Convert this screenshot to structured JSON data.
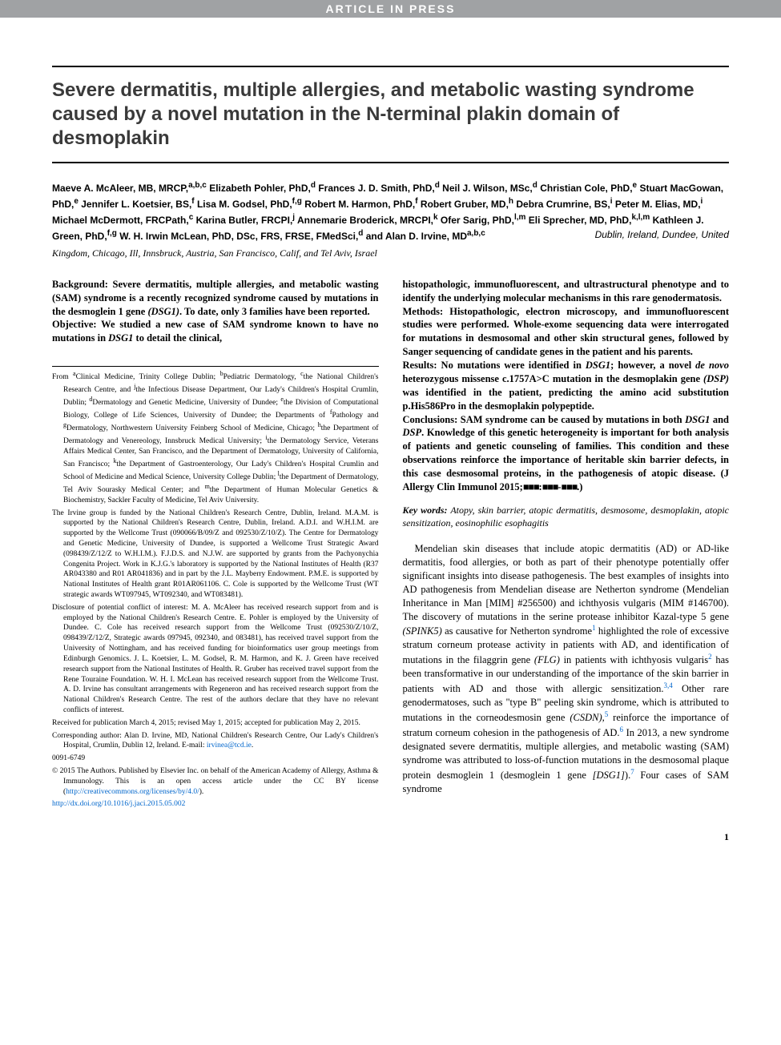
{
  "header": {
    "article_in_press": "ARTICLE IN PRESS"
  },
  "title": "Severe dermatitis, multiple allergies, and metabolic wasting syndrome caused by a novel mutation in the N-terminal plakin domain of desmoplakin",
  "authors_html": "Maeve A. McAleer, MB, MRCP,<sup>a,b,c</sup> Elizabeth Pohler, PhD,<sup>d</sup> Frances J. D. Smith, PhD,<sup>d</sup> Neil J. Wilson, MSc,<sup>d</sup> Christian Cole, PhD,<sup>e</sup> Stuart MacGowan, PhD,<sup>e</sup> Jennifer L. Koetsier, BS,<sup>f</sup> Lisa M. Godsel, PhD,<sup>f,g</sup> Robert M. Harmon, PhD,<sup>f</sup> Robert Gruber, MD,<sup>h</sup> Debra Crumrine, BS,<sup>i</sup> Peter M. Elias, MD,<sup>i</sup> Michael McDermott, FRCPath,<sup>c</sup> Karina Butler, FRCPI,<sup>j</sup> Annemarie Broderick, MRCPI,<sup>k</sup> Ofer Sarig, PhD,<sup>l,m</sup> Eli Sprecher, MD, PhD,<sup>k,l,m</sup> Kathleen J. Green, PhD,<sup>f,g</sup> W. H. Irwin McLean, PhD, DSc, FRS, FRSE, FMedSci,<sup>d</sup> and Alan D. Irvine, MD<sup>a,b,c</sup>",
  "locations_inline": "Dublin, Ireland, Dundee, United",
  "locations_rest": "Kingdom, Chicago, Ill, Innsbruck, Austria, San Francisco, Calif, and Tel Aviv, Israel",
  "abstract": {
    "background": "Background: Severe dermatitis, multiple allergies, and metabolic wasting (SAM) syndrome is a recently recognized syndrome caused by mutations in the desmoglein 1 gene <i>(DSG1)</i>. To date, only 3 families have been reported.",
    "objective": "Objective: We studied a new case of SAM syndrome known to have no mutations in <i>DSG1</i> to detail the clinical,",
    "objective_cont": "histopathologic, immunofluorescent, and ultrastructural phenotype and to identify the underlying molecular mechanisms in this rare genodermatosis.",
    "methods": "Methods: Histopathologic, electron microscopy, and immunofluorescent studies were performed. Whole-exome sequencing data were interrogated for mutations in desmosomal and other skin structural genes, followed by Sanger sequencing of candidate genes in the patient and his parents.",
    "results": "Results: No mutations were identified in <i>DSG1</i>; however, a novel <i>de novo</i> heterozygous missense c.1757A>C mutation in the desmoplakin gene <i>(DSP)</i> was identified in the patient, predicting the amino acid substitution p.His586Pro in the desmoplakin polypeptide.",
    "conclusions": "Conclusions: SAM syndrome can be caused by mutations in both <i>DSG1</i> and <i>DSP</i>. Knowledge of this genetic heterogeneity is important for both analysis of patients and genetic counseling of families. This condition and these observations reinforce the importance of heritable skin barrier defects, in this case desmosomal proteins, in the pathogenesis of atopic disease. (J Allergy Clin Immunol 2015;<span class=\"blackbox\">■■■</span>:<span class=\"blackbox\">■■■</span>-<span class=\"blackbox\">■■■</span>.)"
  },
  "keywords": {
    "label": "Key words:",
    "text": "Atopy, skin barrier, atopic dermatitis, desmosome, desmoplakin, atopic sensitization, eosinophilic esophagitis"
  },
  "body_para": "Mendelian skin diseases that include atopic dermatitis (AD) or AD-like dermatitis, food allergies, or both as part of their phenotype potentially offer significant insights into disease pathogenesis. The best examples of insights into AD pathogenesis from Mendelian disease are Netherton syndrome (Mendelian Inheritance in Man [MIM] #256500) and ichthyosis vulgaris (MIM #146700). The discovery of mutations in the serine protease inhibitor Kazal-type 5 gene <i>(SPINK5)</i> as causative for Netherton syndrome<sup class=\"ref\">1</sup> highlighted the role of excessive stratum corneum protease activity in patients with AD, and identification of mutations in the filaggrin gene <i>(FLG)</i> in patients with ichthyosis vulgaris<sup class=\"ref\">2</sup> has been transformative in our understanding of the importance of the skin barrier in patients with AD and those with allergic sensitization.<sup class=\"ref\">3,4</sup> Other rare genodermatoses, such as \"type B\" peeling skin syndrome, which is attributed to mutations in the corneodesmosin gene <i>(CSDN)</i>,<sup class=\"ref\">5</sup> reinforce the importance of stratum corneum cohesion in the pathogenesis of AD.<sup class=\"ref\">6</sup> In 2013, a new syndrome designated severe dermatitis, multiple allergies, and metabolic wasting (SAM) syndrome was attributed to loss-of-function mutations in the desmosomal plaque protein desmoglein 1 (desmoglein 1 gene <i>[DSG1]</i>).<sup class=\"ref\">7</sup> Four cases of SAM syndrome",
  "footnotes": {
    "from": "From <sup>a</sup>Clinical Medicine, Trinity College Dublin; <sup>b</sup>Pediatric Dermatology, <sup>c</sup>the National Children's Research Centre, and <sup>j</sup>the Infectious Disease Department, Our Lady's Children's Hospital Crumlin, Dublin; <sup>d</sup>Dermatology and Genetic Medicine, University of Dundee; <sup>e</sup>the Division of Computational Biology, College of Life Sciences, University of Dundee; the Departments of <sup>f</sup>Pathology and <sup>g</sup>Dermatology, Northwestern University Feinberg School of Medicine, Chicago; <sup>h</sup>the Department of Dermatology and Venereology, Innsbruck Medical University; <sup>i</sup>the Dermatology Service, Veterans Affairs Medical Center, San Francisco, and the Department of Dermatology, University of California, San Francisco; <sup>k</sup>the Department of Gastroenterology, Our Lady's Children's Hospital Crumlin and School of Medicine and Medical Science, University College Dublin; <sup>l</sup>the Department of Dermatology, Tel Aviv Sourasky Medical Center; and <sup>m</sup>the Department of Human Molecular Genetics &amp; Biochemistry, Sackler Faculty of Medicine, Tel Aviv University.",
    "funding": "The Irvine group is funded by the National Children's Research Centre, Dublin, Ireland. M.A.M. is supported by the National Children's Research Centre, Dublin, Ireland. A.D.I. and W.H.I.M. are supported by the Wellcome Trust (090066/B/09/Z and 092530/Z/10/Z). The Centre for Dermatology and Genetic Medicine, University of Dundee, is supported a Wellcome Trust Strategic Award (098439/Z/12/Z to W.H.I.M.). F.J.D.S. and N.J.W. are supported by grants from the Pachyonychia Congenita Project. Work in K.J.G.'s laboratory is supported by the National Institutes of Health (R37 AR043380 and R01 AR041836) and in part by the J.L. Mayberry Endowment. P.M.E. is supported by National Institutes of Health grant R01AR061106. C. Cole is supported by the Wellcome Trust (WT strategic awards WT097945, WT092340, and WT083481).",
    "disclosure": "Disclosure of potential conflict of interest: M. A. McAleer has received research support from and is employed by the National Children's Research Centre. E. Pohler is employed by the University of Dundee. C. Cole has received research support from the Wellcome Trust (092530/Z/10/Z, 098439/Z/12/Z, Strategic awards 097945, 092340, and 083481), has received travel support from the University of Nottingham, and has received funding for bioinformatics user group meetings from Edinburgh Genomics. J. L. Koetsier, L. M. Godsel, R. M. Harmon, and K. J. Green have received research support from the National Institutes of Health. R. Gruber has received travel support from the Rene Touraine Foundation. W. H. I. McLean has received research support from the Wellcome Trust. A. D. Irvine has consultant arrangements with Regeneron and has received research support from the National Children's Research Centre. The rest of the authors declare that they have no relevant conflicts of interest.",
    "received": "Received for publication March 4, 2015; revised May 1, 2015; accepted for publication May 2, 2015.",
    "corresponding": "Corresponding author: Alan D. Irvine, MD, National Children's Research Centre, Our Lady's Children's Hospital, Crumlin, Dublin 12, Ireland. E-mail: ",
    "email": "irvinea@tcd.ie",
    "issn": "0091-6749",
    "copyright": "© 2015 The Authors. Published by Elsevier Inc. on behalf of the American Academy of Allergy, Asthma & Immunology. This is an open access article under the CC BY license (",
    "cc_url": "http://creativecommons.org/licenses/by/4.0/",
    "cc_close": ").",
    "doi": "http://dx.doi.org/10.1016/j.jaci.2015.05.002"
  },
  "page_number": "1",
  "colors": {
    "header_bg": "#a0a2a4",
    "link": "#0066cc",
    "title": "#3a3a3a"
  }
}
